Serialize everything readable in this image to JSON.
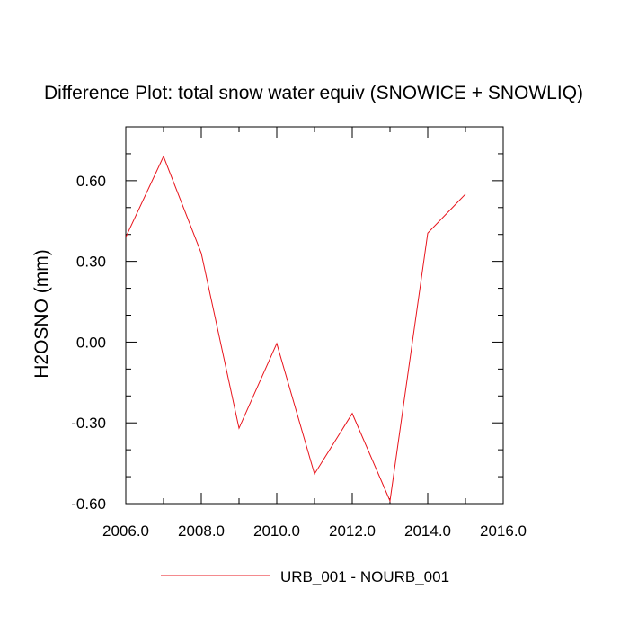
{
  "chart_data": {
    "type": "line",
    "title": "Difference Plot: total snow water equiv (SNOWICE + SNOWLIQ)",
    "xlabel": "",
    "ylabel": "H2OSNO  (mm)",
    "xlim": [
      2006.0,
      2016.0
    ],
    "ylim": [
      -0.6,
      0.8
    ],
    "x_ticks": [
      2006,
      2008,
      2010,
      2012,
      2014,
      2016
    ],
    "x_tick_labels": [
      "2006.0",
      "2008.0",
      "2010.0",
      "2012.0",
      "2014.0",
      "2016.0"
    ],
    "x_minor_ticks": [
      2007,
      2009,
      2011,
      2013,
      2015
    ],
    "y_ticks": [
      -0.6,
      -0.3,
      0.0,
      0.3,
      0.6
    ],
    "y_tick_labels": [
      "-0.60",
      "-0.30",
      "0.00",
      "0.30",
      "0.60"
    ],
    "y_minor_step": 0.1,
    "grid": false,
    "legend_position": "bottom-center",
    "series": [
      {
        "name": "URB_001 - NOURB_001",
        "color": "#e8141c",
        "x": [
          2006,
          2007,
          2008,
          2009,
          2010,
          2011,
          2012,
          2013,
          2014,
          2015
        ],
        "values": [
          0.39,
          0.69,
          0.33,
          -0.32,
          -0.005,
          -0.49,
          -0.265,
          -0.59,
          0.405,
          0.55
        ]
      }
    ]
  }
}
